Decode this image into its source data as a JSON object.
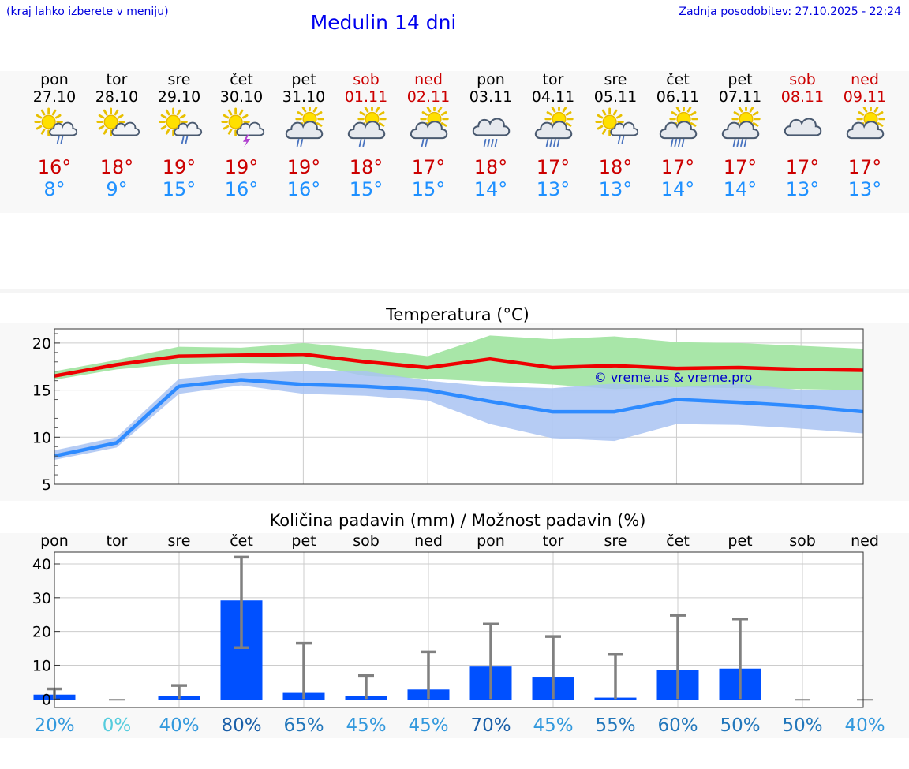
{
  "header": {
    "menu_hint": "(kraj lahko izberete v meniju)",
    "title": "Medulin 14 dni",
    "updated": "Zadnja posodobitev: 27.10.2025 - 22:24"
  },
  "colors": {
    "link_blue": "#0000dd",
    "max_temp": "#cc0000",
    "min_temp": "#1e90ff",
    "weekend": "#cc0000",
    "max_line": "#ee0000",
    "max_band": "#a8e6a8",
    "min_line": "#2e8bff",
    "min_band": "#a9c3f2",
    "bar": "#0050ff",
    "error_bar": "#808080"
  },
  "days": [
    {
      "name": "pon",
      "date": "27.10",
      "weekend": false,
      "icon": "sun-cloud-rain-icon",
      "max": "16°",
      "min": "8°"
    },
    {
      "name": "tor",
      "date": "28.10",
      "weekend": false,
      "icon": "sun-cloud-icon",
      "max": "18°",
      "min": "9°"
    },
    {
      "name": "sre",
      "date": "29.10",
      "weekend": false,
      "icon": "sun-cloud-rain-icon",
      "max": "19°",
      "min": "15°"
    },
    {
      "name": "čet",
      "date": "30.10",
      "weekend": false,
      "icon": "sun-cloud-thunder-icon",
      "max": "19°",
      "min": "16°"
    },
    {
      "name": "pet",
      "date": "31.10",
      "weekend": false,
      "icon": "cloud-sun-rain-icon",
      "max": "19°",
      "min": "16°"
    },
    {
      "name": "sob",
      "date": "01.11",
      "weekend": true,
      "icon": "cloud-sun-rain-icon",
      "max": "18°",
      "min": "15°"
    },
    {
      "name": "ned",
      "date": "02.11",
      "weekend": true,
      "icon": "cloud-sun-rain-icon",
      "max": "17°",
      "min": "15°"
    },
    {
      "name": "pon",
      "date": "03.11",
      "weekend": false,
      "icon": "cloud-heavy-rain-icon",
      "max": "18°",
      "min": "14°"
    },
    {
      "name": "tor",
      "date": "04.11",
      "weekend": false,
      "icon": "cloud-sun-heavy-rain-icon",
      "max": "17°",
      "min": "13°"
    },
    {
      "name": "sre",
      "date": "05.11",
      "weekend": false,
      "icon": "sun-cloud-rain-icon",
      "max": "18°",
      "min": "13°"
    },
    {
      "name": "čet",
      "date": "06.11",
      "weekend": false,
      "icon": "cloud-sun-heavy-rain-icon",
      "max": "17°",
      "min": "14°"
    },
    {
      "name": "pet",
      "date": "07.11",
      "weekend": false,
      "icon": "cloud-sun-heavy-rain-icon",
      "max": "17°",
      "min": "14°"
    },
    {
      "name": "sob",
      "date": "08.11",
      "weekend": true,
      "icon": "cloud-icon",
      "max": "17°",
      "min": "13°"
    },
    {
      "name": "ned",
      "date": "09.11",
      "weekend": true,
      "icon": "cloud-sun-icon",
      "max": "17°",
      "min": "13°"
    }
  ],
  "chart_data": [
    {
      "type": "line",
      "title": "Temperatura (°C)",
      "watermark": "© vreme.us & vreme.pro",
      "x": [
        0,
        1,
        2,
        3,
        4,
        5,
        6,
        7,
        8,
        9,
        10,
        11,
        12,
        13
      ],
      "ylim": [
        5,
        21.5
      ],
      "yticks": [
        5,
        10,
        15,
        20
      ],
      "grid": true,
      "series": [
        {
          "values": [
            16.5,
            17.7,
            18.6,
            18.7,
            18.8,
            18.0,
            17.4,
            18.3,
            17.4,
            17.6,
            17.3,
            17.4,
            17.2,
            17.1
          ],
          "band_low": [
            16.1,
            17.2,
            17.8,
            17.9,
            17.8,
            16.5,
            16.2,
            15.9,
            15.6,
            15.1,
            15.3,
            15.2,
            15.1,
            15.0
          ],
          "band_high": [
            17.0,
            18.2,
            19.6,
            19.5,
            20.0,
            19.4,
            18.6,
            20.8,
            20.4,
            20.7,
            20.1,
            20.0,
            19.7,
            19.4
          ]
        },
        {
          "values": [
            8.0,
            9.4,
            15.4,
            16.1,
            15.6,
            15.4,
            15.0,
            13.8,
            12.7,
            12.7,
            14.0,
            13.7,
            13.3,
            12.7
          ],
          "band_low": [
            7.6,
            8.9,
            14.6,
            15.5,
            14.6,
            14.4,
            13.9,
            11.4,
            9.9,
            9.6,
            11.4,
            11.3,
            10.9,
            10.4
          ],
          "band_high": [
            8.6,
            10.0,
            16.2,
            16.8,
            17.0,
            17.0,
            16.0,
            15.4,
            15.2,
            15.7,
            15.3,
            15.7,
            15.0,
            15.0
          ]
        }
      ]
    },
    {
      "type": "bar",
      "title": "Količina padavin (mm) / Možnost padavin (%)",
      "categories": [
        "pon",
        "tor",
        "sre",
        "čet",
        "pet",
        "sob",
        "ned",
        "pon",
        "tor",
        "sre",
        "čet",
        "pet",
        "sob",
        "ned"
      ],
      "values": [
        1.3,
        0,
        0.8,
        29.2,
        1.8,
        0.8,
        2.8,
        9.6,
        6.6,
        0.4,
        8.6,
        9.0,
        0,
        0
      ],
      "error_low": [
        0,
        0,
        0,
        15.2,
        0,
        0,
        0,
        0,
        0,
        0,
        0,
        0,
        0,
        0
      ],
      "error_high": [
        3.0,
        0,
        4.0,
        42.0,
        16.5,
        7.0,
        14.0,
        22.2,
        18.5,
        13.2,
        24.8,
        23.7,
        0,
        0
      ],
      "ylim": [
        -2.5,
        43.5
      ],
      "yticks": [
        0,
        10,
        20,
        30,
        40
      ],
      "grid": true,
      "probabilities": [
        "20%",
        "0%",
        "40%",
        "80%",
        "65%",
        "45%",
        "45%",
        "70%",
        "45%",
        "55%",
        "60%",
        "50%",
        "50%",
        "40%"
      ],
      "probability_values": [
        20,
        0,
        40,
        80,
        65,
        45,
        45,
        70,
        45,
        55,
        60,
        50,
        50,
        40
      ]
    }
  ]
}
